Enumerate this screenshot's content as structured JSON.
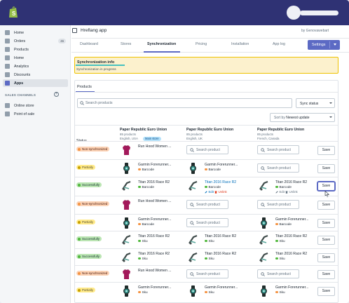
{
  "app": {
    "title": "Hreflang app",
    "by": "by Genovawebart"
  },
  "sidebar": {
    "items": [
      {
        "label": "Home",
        "icon": "home-icon"
      },
      {
        "label": "Orders",
        "icon": "orders-icon",
        "badge": "46"
      },
      {
        "label": "Products",
        "icon": "tag-icon"
      },
      {
        "label": "Home",
        "icon": "home-icon"
      },
      {
        "label": "Analytics",
        "icon": "analytics-icon"
      },
      {
        "label": "Discounts",
        "icon": "discount-icon"
      },
      {
        "label": "Apps",
        "icon": "apps-icon"
      }
    ],
    "section_title": "SALES CHANNELS",
    "channels": [
      {
        "label": "Online store",
        "icon": "online-store-icon"
      },
      {
        "label": "Point of sale",
        "icon": "pos-icon"
      }
    ]
  },
  "tabs": [
    "Dashboard",
    "Stores",
    "Synchronization",
    "Pricing",
    "Installation",
    "App log"
  ],
  "settings_label": "Settings",
  "banner": {
    "title": "Synchronization info",
    "text": "Synchronization in progress"
  },
  "products_tab": "Products",
  "search_placeholder": "Search products",
  "sync_status": "Sync status",
  "sort": {
    "label": "Sort by",
    "value": "Newest update"
  },
  "columns": {
    "status": "Status",
    "stores": [
      {
        "name": "Paper Republic Euro Union",
        "count": "85 products",
        "locale": "English, USA",
        "badge": "Main store"
      },
      {
        "name": "Paper Republic Euro Union",
        "count": "85 products",
        "locale": "English, UK"
      },
      {
        "name": "Paper Republic Euro Union",
        "count": "85 products",
        "locale": "French, Canada"
      }
    ]
  },
  "search_product": "Search product",
  "save_label": "Save",
  "edit_label": "Edit",
  "unlink_label": "Unlink",
  "rows": [
    {
      "status": "Non-synchronized",
      "kind": "non",
      "main": {
        "name": "Run Hood Women ...",
        "thumb": "hoodie"
      },
      "c2": {
        "search": true
      },
      "c3": {
        "search": true
      }
    },
    {
      "status": "Partially",
      "kind": "part",
      "main": {
        "name": "Garmin Forerunner...",
        "meta": "Barcode",
        "metaKind": "bar",
        "thumb": "watch"
      },
      "c2": {
        "name": "Garmin Forerunner...",
        "meta": "Barcode",
        "metaKind": "bar",
        "thumb": "watch"
      },
      "c3": {
        "search": true
      }
    },
    {
      "status": "Successfully",
      "kind": "succ",
      "main": {
        "name": "Titan 2016 Race R2",
        "meta": "Barcode",
        "metaKind": "sku",
        "thumb": "bike"
      },
      "c2": {
        "name": "Titan 2016 Race R2",
        "meta": "Barcode",
        "metaKind": "sku",
        "thumb": "bike",
        "link": true,
        "actions": true
      },
      "c3": {
        "name": "Titan 2016 Race R2",
        "meta": "Barcode",
        "metaKind": "sku",
        "thumb": "bike",
        "actions": true
      },
      "focus": true
    },
    {
      "status": "Non-synchronized",
      "kind": "non",
      "main": {
        "name": "Run Hood Women ...",
        "thumb": "hoodie"
      },
      "c2": {
        "search": true
      },
      "c3": {
        "search": true
      }
    },
    {
      "status": "Partially",
      "kind": "part",
      "main": {
        "name": "Garmin Forerunner...",
        "meta": "Barcode",
        "metaKind": "bar",
        "thumb": "watch"
      },
      "c2": {
        "search": true
      },
      "c3": {
        "name": "Garmin Forerunner...",
        "meta": "Barcode",
        "metaKind": "bar",
        "thumb": "watch"
      }
    },
    {
      "status": "Successfully",
      "kind": "succ",
      "main": {
        "name": "Titan 2016 Race R2",
        "meta": "Sku",
        "metaKind": "sku",
        "thumb": "bike"
      },
      "c2": {
        "name": "Titan 2016 Race R2",
        "meta": "Sku",
        "metaKind": "sku",
        "thumb": "bike"
      },
      "c3": {
        "name": "Titan 2016 Race R2",
        "meta": "Sku",
        "metaKind": "sku",
        "thumb": "bike"
      }
    },
    {
      "status": "Successfully",
      "kind": "succ",
      "main": {
        "name": "Titan 2016 Race R2",
        "meta": "Sku",
        "metaKind": "sku",
        "thumb": "bike"
      },
      "c2": {
        "name": "Titan 2016 Race R2",
        "meta": "Sku",
        "metaKind": "sku",
        "thumb": "bike"
      },
      "c3": {
        "name": "Titan 2016 Race R2",
        "meta": "Sku",
        "metaKind": "sku",
        "thumb": "bike"
      }
    },
    {
      "status": "Non-synchronized",
      "kind": "non",
      "main": {
        "name": "Run Hood Women ...",
        "thumb": "hoodie"
      },
      "c2": {
        "search": true
      },
      "c3": {
        "search": true
      }
    },
    {
      "status": "Partially",
      "kind": "part",
      "main": {
        "name": "Garmin Forerunner...",
        "meta": "Sku",
        "metaKind": "bar",
        "thumb": "watch"
      },
      "c2": {
        "name": "Garmin Forerunner...",
        "meta": "Sku",
        "metaKind": "bar",
        "thumb": "watch"
      },
      "c3": {
        "name": "Garmin Forerunner...",
        "meta": "Sku",
        "metaKind": "bar",
        "thumb": "watch"
      }
    }
  ],
  "colors": {
    "topbar": "#2f3274",
    "accent": "#5c6ac4",
    "banner": "#fcf1cd",
    "teal": "#47c1bf"
  }
}
